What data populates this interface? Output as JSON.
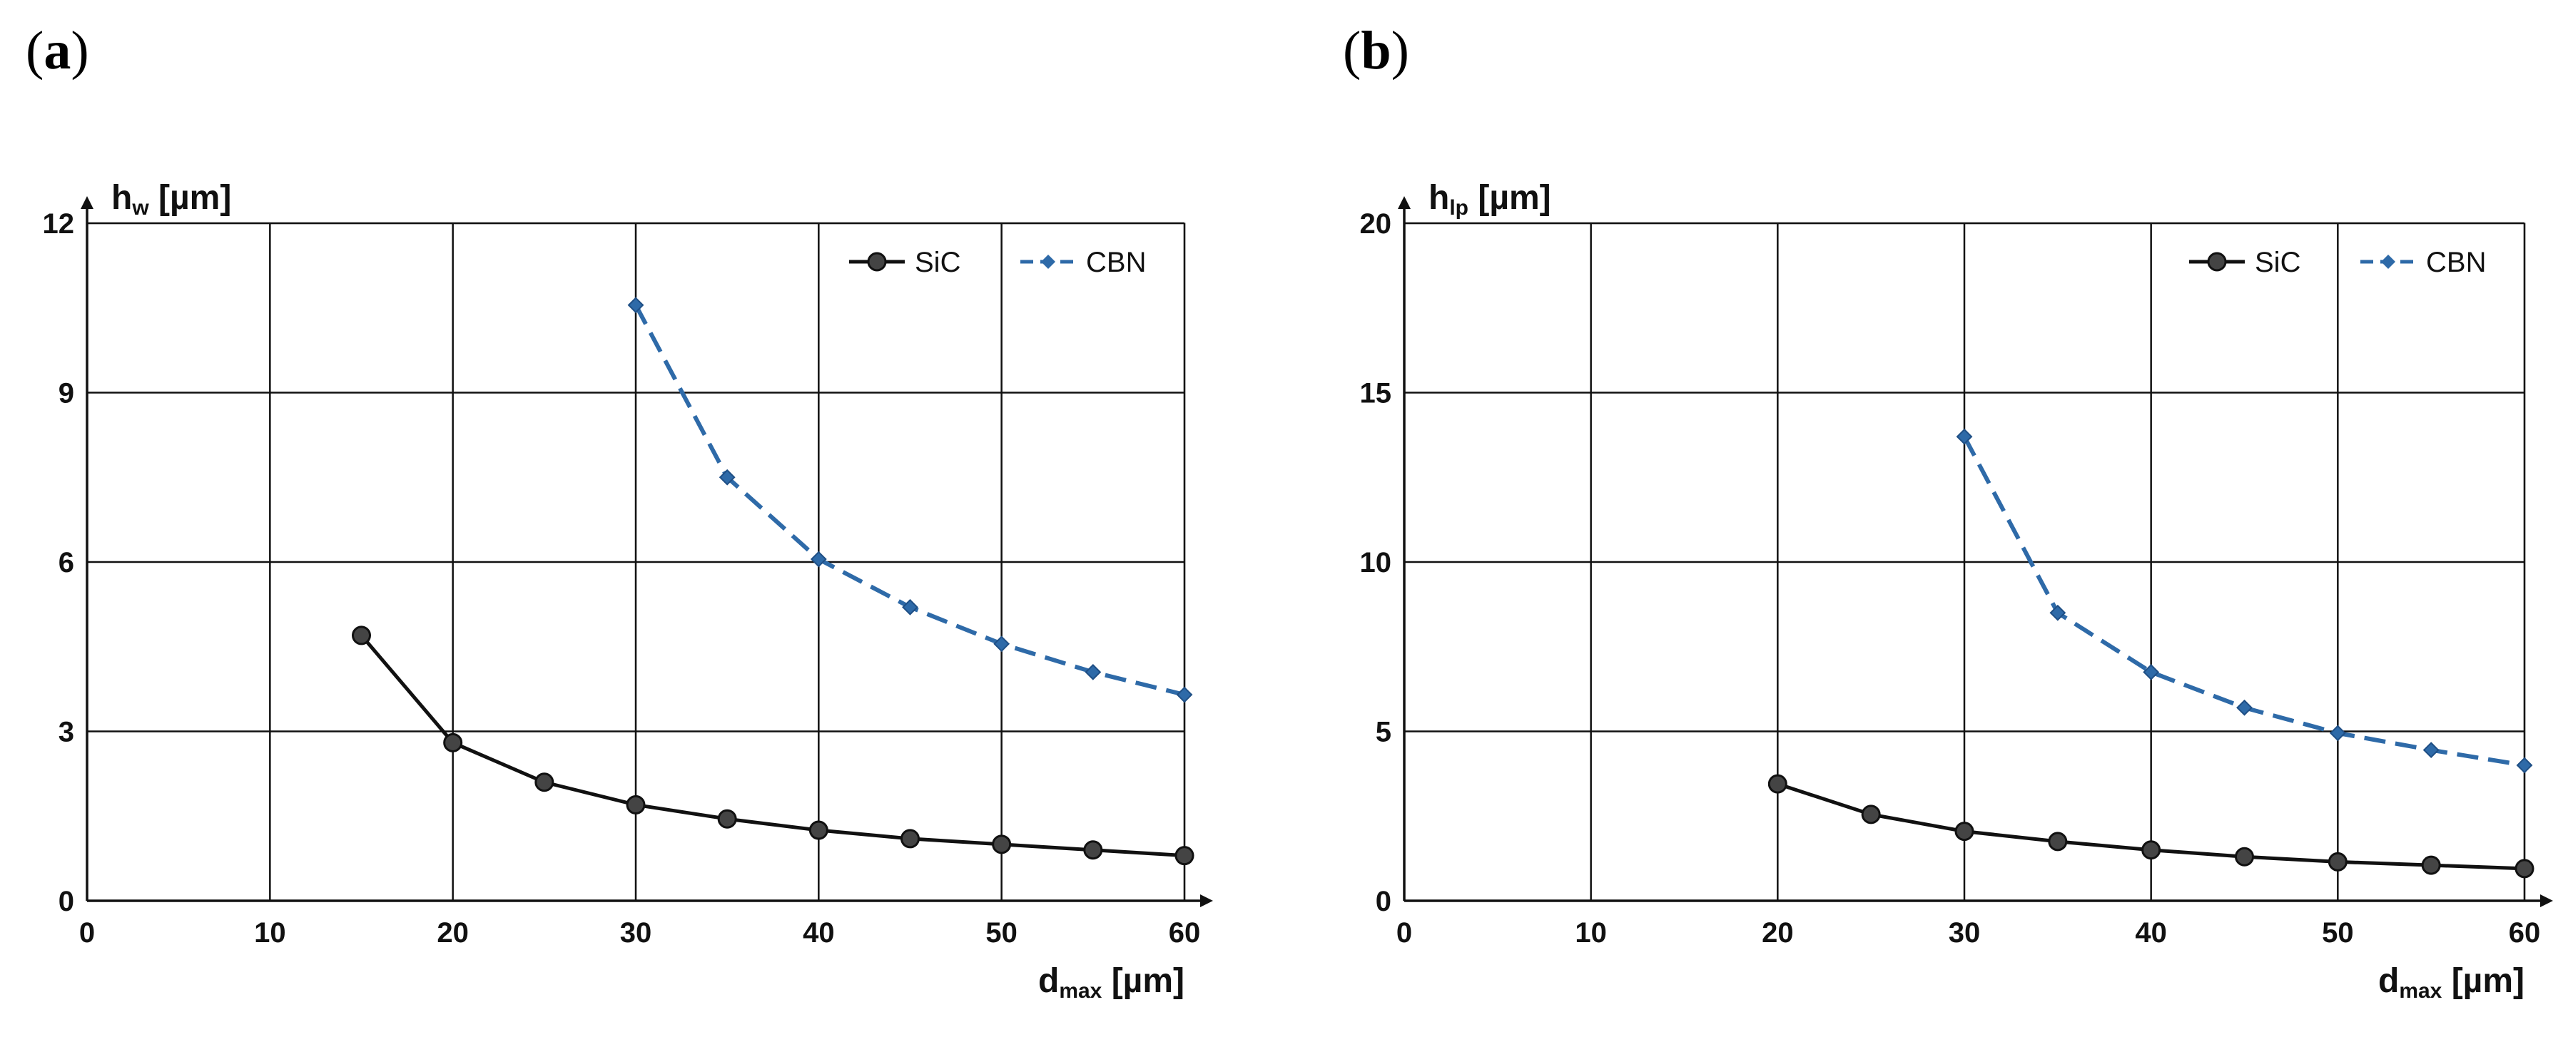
{
  "chart_data": [
    {
      "panel": "(a)",
      "type": "line",
      "title": "",
      "ylabel": "h",
      "ylabel_sub": "w",
      "ylabel_unit": "[µm]",
      "xlabel": "d",
      "xlabel_sub": "max",
      "xlabel_unit": "[µm]",
      "xlim": [
        0,
        60
      ],
      "ylim": [
        0,
        12
      ],
      "xticks": [
        "0",
        "10",
        "20",
        "30",
        "40",
        "50",
        "60"
      ],
      "yticks": [
        "0",
        "3",
        "6",
        "9",
        "12"
      ],
      "grid": true,
      "legend_position": "top-right",
      "series": [
        {
          "name": "SiC",
          "color": "#111111",
          "style": "solid",
          "marker": "circle",
          "x": [
            15,
            20,
            25,
            30,
            35,
            40,
            45,
            50,
            55,
            60
          ],
          "y": [
            4.7,
            2.8,
            2.1,
            1.7,
            1.45,
            1.25,
            1.1,
            1.0,
            0.9,
            0.8
          ]
        },
        {
          "name": "CBN",
          "color": "#2e6aa8",
          "style": "dashed",
          "marker": "diamond",
          "x": [
            30,
            35,
            40,
            45,
            50,
            55,
            60
          ],
          "y": [
            10.55,
            7.5,
            6.05,
            5.2,
            4.55,
            4.05,
            3.65
          ]
        }
      ]
    },
    {
      "panel": "(b)",
      "type": "line",
      "title": "",
      "ylabel": "h",
      "ylabel_sub": "lp",
      "ylabel_unit": "[µm]",
      "xlabel": "d",
      "xlabel_sub": "max",
      "xlabel_unit": "[µm]",
      "xlim": [
        0,
        60
      ],
      "ylim": [
        0,
        20
      ],
      "xticks": [
        "0",
        "10",
        "20",
        "30",
        "40",
        "50",
        "60"
      ],
      "yticks": [
        "0",
        "5",
        "10",
        "15",
        "20"
      ],
      "grid": true,
      "legend_position": "top-right",
      "series": [
        {
          "name": "SiC",
          "color": "#111111",
          "style": "solid",
          "marker": "circle",
          "x": [
            20,
            25,
            30,
            35,
            40,
            45,
            50,
            55,
            60
          ],
          "y": [
            3.45,
            2.55,
            2.05,
            1.75,
            1.5,
            1.3,
            1.15,
            1.05,
            0.95
          ]
        },
        {
          "name": "CBN",
          "color": "#2e6aa8",
          "style": "dashed",
          "marker": "diamond",
          "x": [
            30,
            35,
            40,
            45,
            50,
            55,
            60
          ],
          "y": [
            13.7,
            8.5,
            6.75,
            5.7,
            4.95,
            4.45,
            4.0
          ]
        }
      ]
    }
  ]
}
